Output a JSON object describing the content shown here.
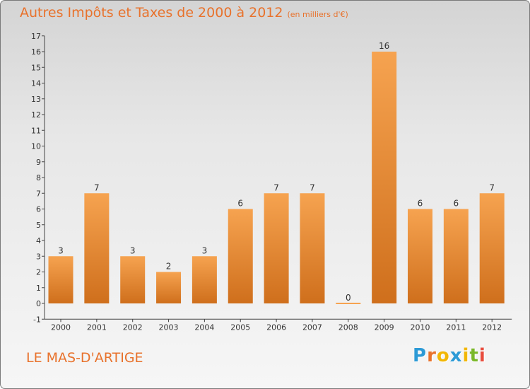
{
  "header": {
    "title": "Autres Impôts et Taxes de 2000 à 2012",
    "unit": "(en milliers d'€)"
  },
  "footer": {
    "place": "LE MAS-D'ARTIGE",
    "logo": {
      "letters": [
        "P",
        "r",
        "o",
        "x",
        "i",
        "t",
        "i"
      ],
      "colors": [
        "#2c9ad6",
        "#e8722c",
        "#f2b705",
        "#2c9ad6",
        "#f2b705",
        "#7ab829",
        "#e84c3d"
      ]
    }
  },
  "colors": {
    "accent": "#e8722c",
    "bar_light": "#f6a350",
    "bar_dark": "#cf6f1c",
    "axis": "#444444"
  },
  "chart_data": {
    "type": "bar",
    "categories": [
      "2000",
      "2001",
      "2002",
      "2003",
      "2004",
      "2005",
      "2006",
      "2007",
      "2008",
      "2009",
      "2010",
      "2011",
      "2012"
    ],
    "values": [
      3,
      7,
      3,
      2,
      3,
      6,
      7,
      7,
      0,
      16,
      6,
      6,
      7
    ],
    "ylim": [
      -1,
      17
    ],
    "yticks": [
      -1,
      0,
      1,
      2,
      3,
      4,
      5,
      6,
      7,
      8,
      9,
      10,
      11,
      12,
      13,
      14,
      15,
      16,
      17
    ],
    "grid": false,
    "legend": "none"
  }
}
